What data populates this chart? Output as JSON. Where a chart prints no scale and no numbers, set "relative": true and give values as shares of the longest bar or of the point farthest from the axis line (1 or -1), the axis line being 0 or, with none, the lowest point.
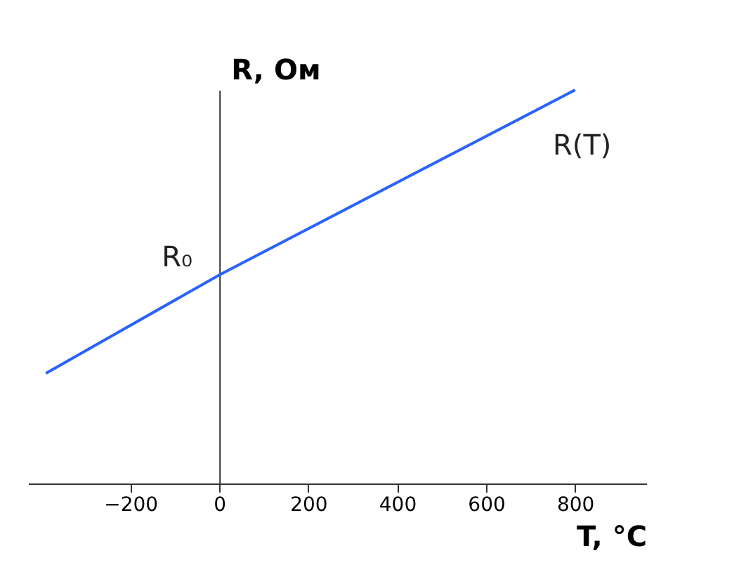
{
  "chart_data": {
    "type": "line",
    "relative": true,
    "xlabel": "T, °C",
    "ylabel": "R, Ом",
    "x": [
      -390,
      0,
      800
    ],
    "series": [
      {
        "color": "#2962ff",
        "values": [
          0.28,
          0.53,
          1
        ]
      }
    ],
    "xlim": [
      -430,
      960
    ],
    "xticks": [
      -200,
      0,
      200,
      400,
      600,
      800
    ],
    "annotations": [
      {
        "text": "R₀",
        "x": 0,
        "y": 0.53
      },
      {
        "text": "R(T)",
        "x": 800,
        "y": 1
      }
    ],
    "marker": "none",
    "line_style": "solid"
  }
}
